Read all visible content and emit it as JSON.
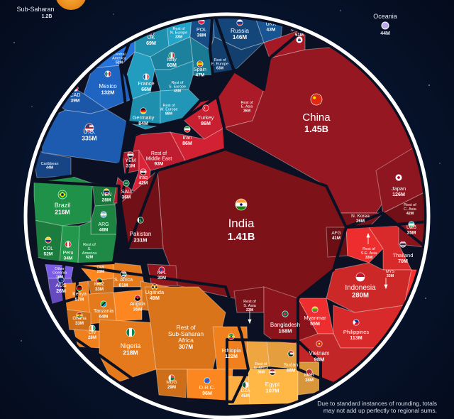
{
  "chart_data": {
    "type": "voronoi-treemap",
    "colors": {
      "europe": "#1f8fae",
      "eastern_europe": "#14467a",
      "north_america": "#1d5bb0",
      "latin_america": "#1e8a45",
      "oceania": "#6a4fc9",
      "africa": "#e57a1c",
      "north_africa": "#f0a640",
      "middle_east": "#c81f31",
      "east_asia": "#951722",
      "south_asia": "#7e1219",
      "southeast_asia": "#d82a2a"
    },
    "cells": [
      {
        "key": "uk",
        "name": "UK",
        "value": "69M",
        "flag": "uk"
      },
      {
        "key": "rest_n_europe",
        "name": "Rest of N. Europe",
        "value": "33M",
        "flag": ""
      },
      {
        "key": "central_america",
        "name": "Central America",
        "value": "52M",
        "flag": ""
      },
      {
        "key": "italy",
        "name": "Italy",
        "value": "60M",
        "flag": "italy"
      },
      {
        "key": "france",
        "name": "France",
        "value": "66M",
        "flag": "france"
      },
      {
        "key": "spain",
        "name": "Spain",
        "value": "47M",
        "flag": "spain"
      },
      {
        "key": "rest_s_europe",
        "name": "Rest of S. Europe",
        "value": "45M",
        "flag": ""
      },
      {
        "key": "germany",
        "name": "Germany",
        "value": "84M",
        "flag": "germany"
      },
      {
        "key": "rest_w_europe",
        "name": "Rest of W. Europe",
        "value": "88M",
        "flag": ""
      },
      {
        "key": "pol",
        "name": "POL",
        "value": "38M",
        "flag": "poland"
      },
      {
        "key": "russia",
        "name": "Russia",
        "value": "146M",
        "flag": "russia"
      },
      {
        "key": "ukr",
        "name": "UKR",
        "value": "43M",
        "flag": "ukraine"
      },
      {
        "key": "rest_e_europe",
        "name": "Rest of E. Europe",
        "value": "63M",
        "flag": ""
      },
      {
        "key": "mexico",
        "name": "Mexico",
        "value": "132M",
        "flag": "mexico"
      },
      {
        "key": "cad",
        "name": "CAD",
        "value": "39M",
        "flag": "canada"
      },
      {
        "key": "us",
        "name": "U.S.",
        "value": "335M",
        "flag": "us"
      },
      {
        "key": "caribbean",
        "name": "Caribbean",
        "value": "44M",
        "flag": ""
      },
      {
        "key": "brazil",
        "name": "Brazil",
        "value": "216M",
        "flag": "brazil"
      },
      {
        "key": "ven",
        "name": "VEN",
        "value": "28M",
        "flag": "venezuela"
      },
      {
        "key": "arg",
        "name": "ARG",
        "value": "46M",
        "flag": "argentina"
      },
      {
        "key": "col",
        "name": "COL",
        "value": "52M",
        "flag": "colombia"
      },
      {
        "key": "peru",
        "name": "Peru",
        "value": "34M",
        "flag": "peru"
      },
      {
        "key": "rest_s_america",
        "name": "Rest of S. America",
        "value": "62M",
        "flag": ""
      },
      {
        "key": "other_oceania",
        "name": "Other Oceania",
        "value": "16M",
        "flag": ""
      },
      {
        "key": "aus",
        "name": "AUS",
        "value": "26M",
        "flag": "australia"
      },
      {
        "key": "turkey",
        "name": "Turkey",
        "value": "86M",
        "flag": "turkey"
      },
      {
        "key": "iran",
        "name": "Iran",
        "value": "86M",
        "flag": "iran"
      },
      {
        "key": "rest_middle_east",
        "name": "Rest of Middle East",
        "value": "93M",
        "flag": ""
      },
      {
        "key": "yem",
        "name": "YEM",
        "value": "31M",
        "flag": "yemen"
      },
      {
        "key": "iraq",
        "name": "Iraq",
        "value": "42M",
        "flag": "iraq"
      },
      {
        "key": "sau",
        "name": "SAU",
        "value": "36M",
        "flag": "saudi"
      },
      {
        "key": "rest_e_asia",
        "name": "Rest of E. Asia",
        "value": "36M",
        "flag": ""
      },
      {
        "key": "s_korea",
        "name": "S. Korea",
        "value": "51M",
        "flag": "skorea"
      },
      {
        "key": "china",
        "name": "China",
        "value": "1.45B",
        "flag": "china"
      },
      {
        "key": "japan",
        "name": "Japan",
        "value": "126M",
        "flag": "japan"
      },
      {
        "key": "n_korea",
        "name": "N. Korea",
        "value": "26M",
        "flag": ""
      },
      {
        "key": "rest_c_asia",
        "name": "Rest of C. Asia",
        "value": "42M",
        "flag": ""
      },
      {
        "key": "uzb",
        "name": "UZB",
        "value": "35M",
        "flag": "uzbekistan"
      },
      {
        "key": "india",
        "name": "India",
        "value": "1.41B",
        "flag": "india"
      },
      {
        "key": "pakistan",
        "name": "Pakistan",
        "value": "231M",
        "flag": "pakistan"
      },
      {
        "key": "npl",
        "name": "NPL",
        "value": "30M",
        "flag": "nepal"
      },
      {
        "key": "afg",
        "name": "AFG",
        "value": "41M",
        "flag": ""
      },
      {
        "key": "rest_s_asia",
        "name": "Rest of S. Asia",
        "value": "23M",
        "flag": ""
      },
      {
        "key": "bangladesh",
        "name": "Bangladesh",
        "value": "168M",
        "flag": "bangladesh"
      },
      {
        "key": "rest_se_asia",
        "name": "Rest of S.E. Asia",
        "value": "33M",
        "flag": ""
      },
      {
        "key": "thailand",
        "name": "Thailand",
        "value": "70M",
        "flag": "thailand"
      },
      {
        "key": "indonesia",
        "name": "Indonesia",
        "value": "280M",
        "flag": "indonesia"
      },
      {
        "key": "mys",
        "name": "MYS",
        "value": "33M",
        "flag": ""
      },
      {
        "key": "myanmar",
        "name": "Myanmar",
        "value": "55M",
        "flag": "myanmar"
      },
      {
        "key": "philippines",
        "name": "Philippines",
        "value": "113M",
        "flag": "philippines"
      },
      {
        "key": "vietnam",
        "name": "Vietnam",
        "value": "98M",
        "flag": "vietnam"
      },
      {
        "key": "omi",
        "name": "OMI",
        "value": "29M",
        "flag": ""
      },
      {
        "key": "s_africa",
        "name": "S. Africa",
        "value": "61M",
        "flag": "safrica"
      },
      {
        "key": "moz",
        "name": "MOZ",
        "value": "33M",
        "flag": "mozambique"
      },
      {
        "key": "kenya",
        "name": "Kenya",
        "value": "57M",
        "flag": "kenya"
      },
      {
        "key": "uganda",
        "name": "Uganda",
        "value": "49M",
        "flag": "uganda"
      },
      {
        "key": "angola",
        "name": "Angola",
        "value": "35M",
        "flag": "angola"
      },
      {
        "key": "tanzania",
        "name": "Tanzania",
        "value": "64M",
        "flag": "tanzania"
      },
      {
        "key": "ghana",
        "name": "Ghana",
        "value": "33M",
        "flag": "ghana"
      },
      {
        "key": "civ",
        "name": "CIV",
        "value": "28M",
        "flag": "civ"
      },
      {
        "key": "nigeria",
        "name": "Nigeria",
        "value": "218M",
        "flag": "nigeria"
      },
      {
        "key": "rest_ss_africa",
        "name": "Rest of Sub-Saharan Africa",
        "value": "307M",
        "flag": ""
      },
      {
        "key": "ethiopia",
        "name": "Ethiopia",
        "value": "122M",
        "flag": "ethiopia"
      },
      {
        "key": "mdg",
        "name": "MDG",
        "value": "29M",
        "flag": "madagascar"
      },
      {
        "key": "drc",
        "name": "D.R.C.",
        "value": "96M",
        "flag": "drc"
      },
      {
        "key": "rest_n_africa",
        "name": "Rest of N. Africa",
        "value": "36M",
        "flag": ""
      },
      {
        "key": "sudan",
        "name": "Sudan",
        "value": "46M",
        "flag": "sudan"
      },
      {
        "key": "egypt",
        "name": "Egypt",
        "value": "107M",
        "flag": "egypt"
      },
      {
        "key": "mar",
        "name": "MAR",
        "value": "38M",
        "flag": "morocco"
      },
      {
        "key": "dza",
        "name": "DZA",
        "value": "45M",
        "flag": "algeria"
      }
    ],
    "outer": {
      "subsaharan": {
        "name": "Sub-Saharan",
        "value": "1.2B"
      },
      "oceania": {
        "name": "Oceania",
        "value": "44M"
      }
    },
    "footnote": "Due to standard instances of rounding, totals may not add up perfectly to regional sums."
  }
}
